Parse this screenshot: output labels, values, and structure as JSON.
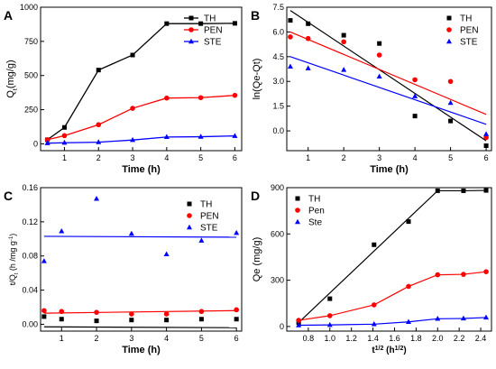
{
  "chart_data": [
    {
      "id": "A",
      "panel_label": "A",
      "type": "line",
      "xlabel": "Time (h)",
      "ylabel": "Qt(mg/g)",
      "ylabel_main": "Q",
      "ylabel_sub": "t",
      "ylabel_rest": "(mg/g)",
      "xlim": [
        0.3,
        6.2
      ],
      "ylim": [
        -50,
        1000
      ],
      "xticks": [
        1,
        2,
        3,
        4,
        5,
        6
      ],
      "yticks": [
        0,
        250,
        500,
        750,
        1000
      ],
      "xtick_labels": [
        "1",
        "2",
        "3",
        "4",
        "5",
        "6"
      ],
      "ytick_labels": [
        "0",
        "250",
        "500",
        "750",
        "1000"
      ],
      "legend_position": "top-right",
      "series": [
        {
          "name": "TH",
          "color": "#000000",
          "marker": "square",
          "x": [
            0.5,
            1,
            2,
            3,
            4,
            5,
            6
          ],
          "y": [
            30,
            120,
            540,
            650,
            880,
            880,
            882
          ]
        },
        {
          "name": "PEN",
          "color": "#ff0000",
          "marker": "circle",
          "x": [
            0.5,
            1,
            2,
            3,
            4,
            5,
            6
          ],
          "y": [
            30,
            60,
            140,
            260,
            335,
            338,
            355
          ]
        },
        {
          "name": "STE",
          "color": "#0000ff",
          "marker": "triangle",
          "x": [
            0.5,
            1,
            2,
            3,
            4,
            5,
            6
          ],
          "y": [
            5,
            8,
            12,
            28,
            50,
            52,
            58
          ]
        }
      ]
    },
    {
      "id": "B",
      "panel_label": "B",
      "type": "scatter",
      "xlabel": "Time (h)",
      "ylabel": "ln(Qe-Qt)",
      "xlim": [
        0.4,
        6.15
      ],
      "ylim": [
        -1.2,
        7.5
      ],
      "xticks": [
        1,
        2,
        3,
        4,
        5,
        6
      ],
      "yticks": [
        0.0,
        1.5,
        3.0,
        4.5,
        6.0,
        7.5
      ],
      "xtick_labels": [
        "1",
        "2",
        "3",
        "4",
        "5",
        "6"
      ],
      "ytick_labels": [
        "0.0",
        "1.5",
        "3.0",
        "4.5",
        "6.0",
        "7.5"
      ],
      "legend_position": "top-right",
      "series": [
        {
          "name": "TH",
          "color": "#000000",
          "marker": "square",
          "x": [
            0.5,
            1,
            2,
            3,
            4,
            5,
            6
          ],
          "y": [
            6.7,
            6.5,
            5.8,
            5.3,
            0.9,
            0.6,
            -0.9
          ],
          "fit": [
            [
              0.5,
              7.3
            ],
            [
              6,
              -0.6
            ]
          ]
        },
        {
          "name": "PEN",
          "color": "#ff0000",
          "marker": "circle",
          "x": [
            0.5,
            1,
            2,
            3,
            4,
            5,
            6
          ],
          "y": [
            5.7,
            5.6,
            5.4,
            4.6,
            3.1,
            3.0,
            -0.4
          ],
          "fit": [
            [
              0.5,
              6.0
            ],
            [
              6,
              1.0
            ]
          ]
        },
        {
          "name": "STE",
          "color": "#0000ff",
          "marker": "triangle",
          "x": [
            0.5,
            1,
            2,
            3,
            4,
            5,
            6
          ],
          "y": [
            3.9,
            3.8,
            3.7,
            3.3,
            2.1,
            1.7,
            -0.2
          ],
          "fit": [
            [
              0.5,
              4.5
            ],
            [
              6,
              0.4
            ]
          ]
        }
      ]
    },
    {
      "id": "C",
      "panel_label": "C",
      "type": "scatter",
      "xlabel": "Time (h)",
      "ylabel": "t/Qt (h /mg g-1)",
      "ylabel_parts": [
        "t/Q",
        "t",
        " (h /mg g",
        "-1",
        ")"
      ],
      "xlim": [
        0.4,
        6.15
      ],
      "ylim": [
        -0.008,
        0.16
      ],
      "xticks": [
        1,
        2,
        3,
        4,
        5,
        6
      ],
      "yticks": [
        0.0,
        0.04,
        0.08,
        0.12,
        0.16
      ],
      "xtick_labels": [
        "1",
        "2",
        "3",
        "4",
        "5",
        "6"
      ],
      "ytick_labels": [
        "0.00",
        "0.04",
        "0.08",
        "0.12",
        "0.16"
      ],
      "legend_position": "top-right",
      "series": [
        {
          "name": "TH",
          "color": "#000000",
          "marker": "square",
          "x": [
            0.5,
            1,
            2,
            3,
            4,
            5,
            6
          ],
          "y": [
            0.009,
            0.006,
            0.004,
            0.005,
            0.005,
            0.006,
            0.006
          ],
          "fit": [
            [
              0.5,
              -0.003
            ],
            [
              6,
              -0.004
            ]
          ]
        },
        {
          "name": "PEN",
          "color": "#ff0000",
          "marker": "circle",
          "x": [
            0.5,
            1,
            2,
            3,
            4,
            5,
            6
          ],
          "y": [
            0.016,
            0.015,
            0.014,
            0.012,
            0.012,
            0.015,
            0.017
          ],
          "fit": [
            [
              0.5,
              0.013
            ],
            [
              6,
              0.016
            ]
          ]
        },
        {
          "name": "STE",
          "color": "#0000ff",
          "marker": "triangle",
          "x": [
            0.5,
            1,
            2,
            3,
            4,
            5,
            6
          ],
          "y": [
            0.074,
            0.109,
            0.147,
            0.106,
            0.082,
            0.098,
            0.107
          ],
          "fit": [
            [
              0.5,
              0.103
            ],
            [
              6,
              0.102
            ]
          ]
        }
      ]
    },
    {
      "id": "D",
      "panel_label": "D",
      "type": "line",
      "xlabel": "t1/2 (h1/2)",
      "xlabel_parts": [
        "t",
        "1/2",
        " (h",
        "1/2",
        ")"
      ],
      "ylabel": "Qe (mg/g)",
      "xlim": [
        0.6,
        2.5
      ],
      "ylim": [
        -30,
        900
      ],
      "xticks": [
        0.8,
        1.0,
        1.2,
        1.4,
        1.6,
        1.8,
        2.0,
        2.2,
        2.4
      ],
      "yticks": [
        0,
        300,
        600,
        900
      ],
      "xtick_labels": [
        "0.8",
        "1.0",
        "1.2",
        "1.4",
        "1.6",
        "1.8",
        "2.0",
        "2.2",
        "2.4"
      ],
      "ytick_labels": [
        "0",
        "300",
        "600",
        "900"
      ],
      "legend_position": "top-left",
      "series": [
        {
          "name": "TH",
          "color": "#000000",
          "marker": "square",
          "x": [
            0.71,
            1.0,
            1.41,
            1.73,
            2.0,
            2.24,
            2.45
          ],
          "y": [
            25,
            180,
            530,
            680,
            880,
            880,
            882
          ],
          "fit": [
            [
              0.71,
              25
            ],
            [
              2.0,
              880
            ],
            [
              2.24,
              880
            ],
            [
              2.45,
              882
            ]
          ]
        },
        {
          "name": "Pen",
          "color": "#ff0000",
          "marker": "circle",
          "x": [
            0.71,
            1.0,
            1.41,
            1.73,
            2.0,
            2.24,
            2.45
          ],
          "y": [
            40,
            70,
            140,
            260,
            335,
            338,
            355
          ],
          "fit": [
            [
              0.71,
              40
            ],
            [
              1.0,
              70
            ],
            [
              1.41,
              140
            ],
            [
              1.73,
              260
            ],
            [
              2.0,
              335
            ],
            [
              2.24,
              338
            ],
            [
              2.45,
              355
            ]
          ]
        },
        {
          "name": "Ste",
          "color": "#0000ff",
          "marker": "triangle",
          "x": [
            0.71,
            1.0,
            1.41,
            1.73,
            2.0,
            2.24,
            2.45
          ],
          "y": [
            8,
            10,
            15,
            30,
            50,
            52,
            58
          ],
          "fit": [
            [
              0.71,
              8
            ],
            [
              1.0,
              10
            ],
            [
              1.41,
              15
            ],
            [
              1.73,
              30
            ],
            [
              2.0,
              50
            ],
            [
              2.24,
              52
            ],
            [
              2.45,
              58
            ]
          ]
        }
      ]
    }
  ]
}
